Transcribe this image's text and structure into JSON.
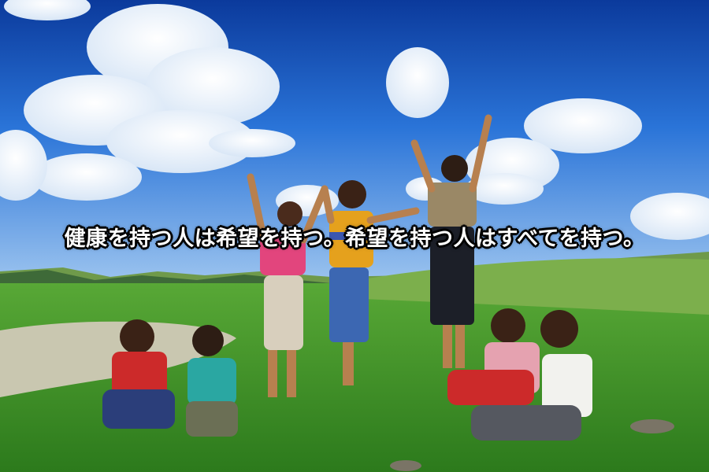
{
  "photo": {
    "subject": "children-jumping-on-grassland",
    "colors": {
      "sky_top": "#0b3a9c",
      "sky_mid": "#2a74d8",
      "sky_low": "#9cc4ef",
      "cloud": "#ffffff",
      "hills": "#6f9a4a",
      "grass": "#3f9a2a",
      "grass_dark": "#2c7a1c",
      "pond": "#c9c7b0"
    }
  },
  "caption": {
    "text": "健康を持つ人は希望を持つ。希望を持つ人はすべてを持つ。"
  }
}
